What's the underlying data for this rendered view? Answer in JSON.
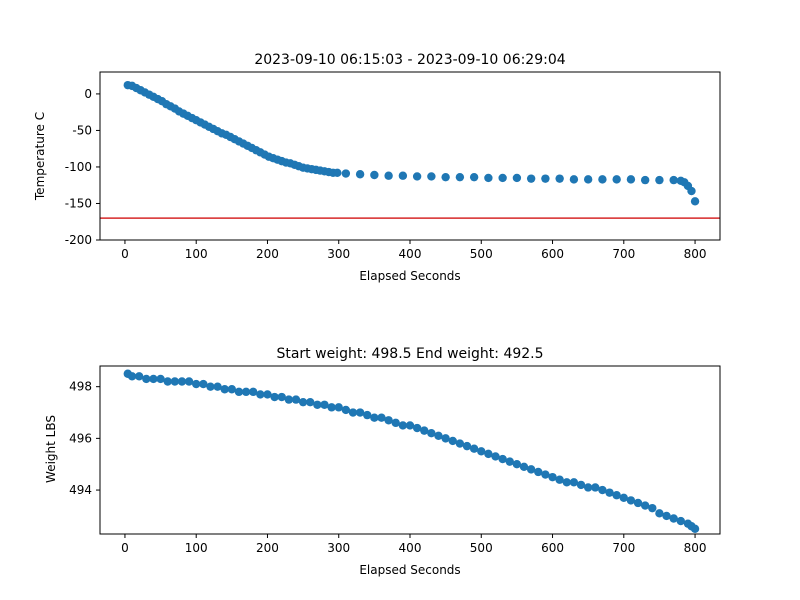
{
  "colors": {
    "points": "#1f77b4",
    "reference_line": "#d62728",
    "axes": "#000000",
    "background": "#ffffff"
  },
  "chart_data": [
    {
      "type": "scatter",
      "title": "2023-09-10 06:15:03 - 2023-09-10 06:29:04",
      "xlabel": "Elapsed Seconds",
      "ylabel": "Temperature C",
      "xlim": [
        -35,
        835
      ],
      "ylim": [
        -200,
        30
      ],
      "xticks": [
        0,
        100,
        200,
        300,
        400,
        500,
        600,
        700,
        800
      ],
      "yticks": [
        0,
        -50,
        -100,
        -150,
        -200
      ],
      "reference_line_y": -170,
      "grid": false,
      "x": [
        4,
        10,
        16,
        22,
        28,
        34,
        40,
        46,
        52,
        58,
        64,
        70,
        76,
        82,
        88,
        94,
        100,
        106,
        112,
        118,
        124,
        130,
        136,
        142,
        148,
        154,
        160,
        166,
        172,
        178,
        184,
        190,
        196,
        202,
        208,
        214,
        220,
        226,
        232,
        238,
        244,
        250,
        256,
        262,
        268,
        274,
        280,
        286,
        292,
        298,
        310,
        330,
        350,
        370,
        390,
        410,
        430,
        450,
        470,
        490,
        510,
        530,
        550,
        570,
        590,
        610,
        630,
        650,
        670,
        690,
        710,
        730,
        750,
        770,
        780,
        785,
        790,
        795,
        800
      ],
      "y": [
        12,
        11,
        8,
        5,
        2,
        -1,
        -4,
        -7,
        -10,
        -14,
        -17,
        -20,
        -24,
        -27,
        -30,
        -33,
        -36,
        -39,
        -42,
        -45,
        -48,
        -51,
        -54,
        -56,
        -59,
        -62,
        -65,
        -68,
        -71,
        -74,
        -77,
        -80,
        -83,
        -86,
        -88,
        -90,
        -92,
        -94,
        -95,
        -97,
        -99,
        -101,
        -102,
        -103,
        -104,
        -105,
        -106,
        -107,
        -108,
        -108,
        -109,
        -110,
        -111,
        -112,
        -112,
        -113,
        -113,
        -114,
        -114,
        -114,
        -115,
        -115,
        -115,
        -116,
        -116,
        -116,
        -117,
        -117,
        -117,
        -117,
        -117,
        -118,
        -118,
        -118,
        -119,
        -121,
        -126,
        -133,
        -147
      ]
    },
    {
      "type": "scatter",
      "title": "Start weight: 498.5 End weight: 492.5",
      "xlabel": "Elapsed Seconds",
      "ylabel": "Weight LBS",
      "xlim": [
        -35,
        835
      ],
      "ylim": [
        492.3,
        498.8
      ],
      "xticks": [
        0,
        100,
        200,
        300,
        400,
        500,
        600,
        700,
        800
      ],
      "yticks": [
        494,
        496,
        498
      ],
      "grid": false,
      "x": [
        4,
        10,
        20,
        30,
        40,
        50,
        60,
        70,
        80,
        90,
        100,
        110,
        120,
        130,
        140,
        150,
        160,
        170,
        180,
        190,
        200,
        210,
        220,
        230,
        240,
        250,
        260,
        270,
        280,
        290,
        300,
        310,
        320,
        330,
        340,
        350,
        360,
        370,
        380,
        390,
        400,
        410,
        420,
        430,
        440,
        450,
        460,
        470,
        480,
        490,
        500,
        510,
        520,
        530,
        540,
        550,
        560,
        570,
        580,
        590,
        600,
        610,
        620,
        630,
        640,
        650,
        660,
        670,
        680,
        690,
        700,
        710,
        720,
        730,
        740,
        750,
        760,
        770,
        780,
        790,
        795,
        800
      ],
      "y": [
        498.5,
        498.4,
        498.4,
        498.3,
        498.3,
        498.3,
        498.2,
        498.2,
        498.2,
        498.2,
        498.1,
        498.1,
        498.0,
        498.0,
        497.9,
        497.9,
        497.8,
        497.8,
        497.8,
        497.7,
        497.7,
        497.6,
        497.6,
        497.5,
        497.5,
        497.4,
        497.4,
        497.3,
        497.3,
        497.2,
        497.2,
        497.1,
        497.0,
        497.0,
        496.9,
        496.8,
        496.8,
        496.7,
        496.6,
        496.5,
        496.5,
        496.4,
        496.3,
        496.2,
        496.1,
        496.0,
        495.9,
        495.8,
        495.7,
        495.6,
        495.5,
        495.4,
        495.3,
        495.2,
        495.1,
        495.0,
        494.9,
        494.8,
        494.7,
        494.6,
        494.5,
        494.4,
        494.3,
        494.3,
        494.2,
        494.1,
        494.1,
        494.0,
        493.9,
        493.8,
        493.7,
        493.6,
        493.5,
        493.4,
        493.3,
        493.1,
        493.0,
        492.9,
        492.8,
        492.7,
        492.6,
        492.5
      ]
    }
  ]
}
